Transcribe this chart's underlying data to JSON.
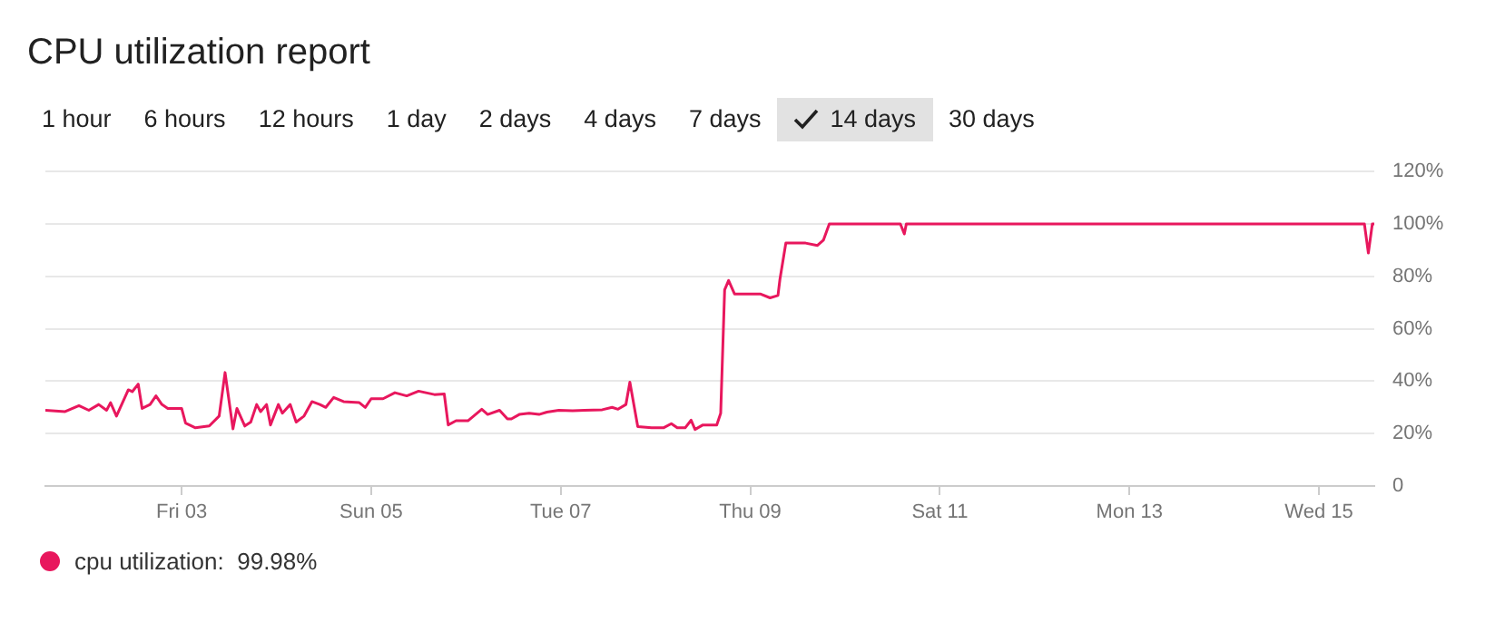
{
  "chart_data": {
    "type": "line",
    "title": "CPU utilization report",
    "annotations": [
      "1 hour",
      "6 hours",
      "12 hours",
      "1 day",
      "2 days",
      "4 days",
      "7 days",
      "14 days",
      "30 days"
    ],
    "x": [
      "--12-01T13:30",
      "--12-01T18:30",
      "--12-01T22:00",
      "--12-02T00:30",
      "--12-02T03:00",
      "--12-02T05:00",
      "--12-02T06:00",
      "--12-02T07:30",
      "--12-02T10:30",
      "--12-02T11:30",
      "--12-02T13:00",
      "--12-02T14:00",
      "--12-02T16:00",
      "--12-02T17:30",
      "--12-02T19:00",
      "--12-02T20:30",
      "--12-03T00:00",
      "--12-03T01:00",
      "--12-03T03:30",
      "--12-03T07:00",
      "--12-03T09:30",
      "--12-03T11:00",
      "--12-03T13:00",
      "--12-03T14:00",
      "--12-03T16:00",
      "--12-03T17:30",
      "--12-03T19:00",
      "--12-03T20:00",
      "--12-03T21:30",
      "--12-03T22:30",
      "--12-04T00:30",
      "--12-04T01:30",
      "--12-04T03:30",
      "--12-04T05:00",
      "--12-04T07:00",
      "--12-04T09:00",
      "--12-04T11:00",
      "--12-04T12:30",
      "--12-04T14:30",
      "--12-04T17:00",
      "--12-04T21:00",
      "--12-04T22:30",
      "--12-05T00:00",
      "--12-05T03:00",
      "--12-05T06:00",
      "--12-05T09:00",
      "--12-05T12:00",
      "--12-05T16:00",
      "--12-05T18:30",
      "--12-05T19:30",
      "--12-05T21:30",
      "--12-06T00:30",
      "--12-06T04:00",
      "--12-06T05:30",
      "--12-06T08:30",
      "--12-06T10:30",
      "--12-06T11:30",
      "--12-06T13:30",
      "--12-06T16:00",
      "--12-06T18:30",
      "--12-06T20:30",
      "--12-06T23:30",
      "--12-07T03:00",
      "--12-07T06:00",
      "--12-07T10:30",
      "--12-07T13:00",
      "--12-07T14:30",
      "--12-07T16:30",
      "--12-07T17:30",
      "--12-07T19:30",
      "--12-07T23:00",
      "--12-08T02:00",
      "--12-08T04:00",
      "--12-08T05:30",
      "--12-08T07:30",
      "--12-08T09:00",
      "--12-08T10:00",
      "--12-08T12:00",
      "--12-08T15:30",
      "--12-08T16:30",
      "--12-08T17:30",
      "--12-08T18:30",
      "--12-08T20:00",
      "--12-08T22:30",
      "--12-09T02:30",
      "--12-09T05:00",
      "--12-09T07:00",
      "--12-09T07:30",
      "--12-09T09:00",
      "--12-09T14:00",
      "--12-09T17:00",
      "--12-09T18:30",
      "--12-09T20:00",
      "--12-10T14:00",
      "--12-10T15:00",
      "--12-10T15:30",
      "--12-15T11:30",
      "--12-15T12:30",
      "--12-15T13:30",
      "--12-15T14:00"
    ],
    "series": [
      {
        "name": "cpu utilization:  99.98%",
        "color": "#e8175d",
        "values": [
          28.9,
          28.4,
          30.7,
          28.9,
          31.1,
          28.9,
          31.8,
          26.7,
          36.7,
          36,
          38.9,
          29.6,
          31.1,
          34.4,
          31.1,
          29.6,
          29.6,
          24,
          22.2,
          22.9,
          26.7,
          43.3,
          21.8,
          29.6,
          22.9,
          24.4,
          31.1,
          28.4,
          31.1,
          23.3,
          31.1,
          27.8,
          31.1,
          24.4,
          26.7,
          32.2,
          31.1,
          30,
          33.8,
          32.2,
          31.8,
          30,
          33.3,
          33.3,
          35.6,
          34.4,
          36.2,
          34.9,
          35.1,
          23.3,
          24.9,
          24.9,
          29.3,
          27.3,
          28.9,
          25.6,
          25.6,
          27.3,
          27.8,
          27.3,
          28.2,
          28.9,
          28.7,
          28.9,
          29.1,
          30,
          29.3,
          31.1,
          39.6,
          22.7,
          22.2,
          22.2,
          23.8,
          22.2,
          22.2,
          25.1,
          21.6,
          23.3,
          23.3,
          27.8,
          74.9,
          78.4,
          73.3,
          73.3,
          73.3,
          71.8,
          72.7,
          78.9,
          92.7,
          92.7,
          91.8,
          93.8,
          100,
          100,
          96.2,
          100,
          100,
          88.9,
          100,
          100
        ]
      }
    ],
    "xlim": [
      "--12-01T13:30",
      "--12-15T14:00"
    ],
    "xticks": [
      {
        "value": "--12-03",
        "label": "Fri 03"
      },
      {
        "value": "--12-05",
        "label": "Sun 05"
      },
      {
        "value": "--12-07",
        "label": "Tue 07"
      },
      {
        "value": "--12-09",
        "label": "Thu 09"
      },
      {
        "value": "--12-11",
        "label": "Sat 11"
      },
      {
        "value": "--12-13",
        "label": "Mon 13"
      },
      {
        "value": "--12-15",
        "label": "Wed 15"
      }
    ],
    "ylim": [
      0,
      120
    ],
    "yticks": [
      0,
      {
        "value": 20,
        "label": "20%"
      },
      {
        "value": 40,
        "label": "40%"
      },
      {
        "value": 60,
        "label": "60%"
      },
      {
        "value": 80,
        "label": "80%"
      },
      {
        "value": 100,
        "label": "100%"
      },
      {
        "value": 120,
        "label": "120%"
      }
    ],
    "grid": "y",
    "legend": "bottom",
    "marker": "none",
    "line_style": "solid"
  }
}
